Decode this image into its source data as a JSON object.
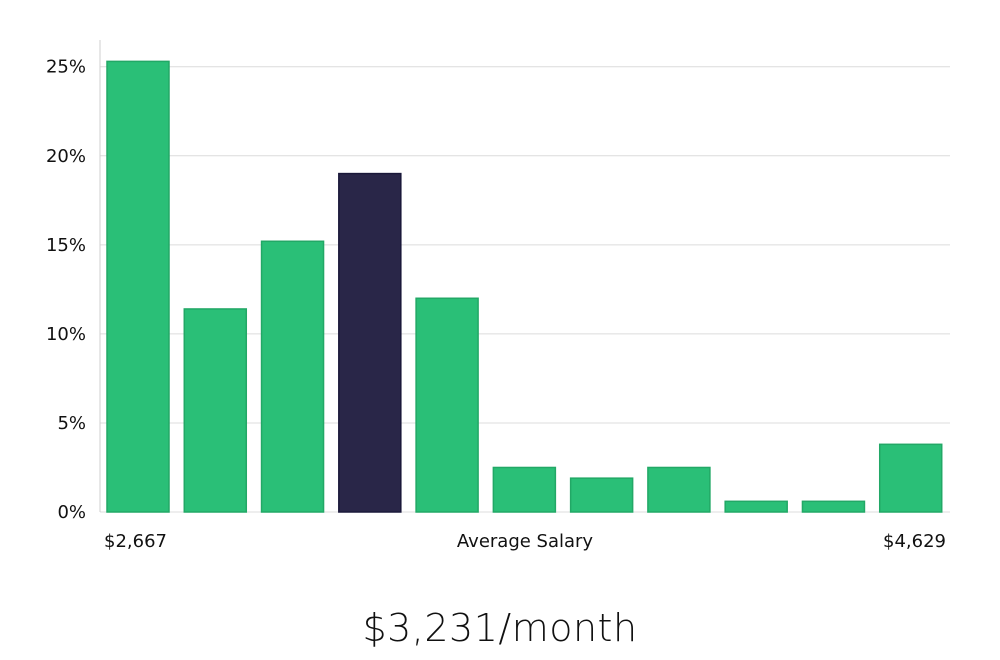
{
  "chart_data": {
    "type": "bar",
    "title": "",
    "xlabel": "Average Salary",
    "ylabel": "",
    "x_min_label": "$2,667",
    "x_max_label": "$4,629",
    "ylim": [
      0,
      26.5
    ],
    "yticks": [
      0,
      5,
      10,
      15,
      20,
      25
    ],
    "ytick_labels": [
      "0%",
      "5%",
      "10%",
      "15%",
      "20%",
      "25%"
    ],
    "values": [
      25.3,
      11.4,
      15.2,
      19.0,
      12.0,
      2.5,
      1.9,
      2.5,
      0.6,
      0.6,
      3.8
    ],
    "highlight_index": 3,
    "grid": true,
    "colors": {
      "bar": "#2abf77",
      "bar_stroke": "#22a866",
      "highlight": "#292648",
      "highlight_stroke": "#1a183a",
      "grid": "#dcdcdc",
      "axis": "#cfcfcf"
    }
  },
  "headline": "$3,231/month"
}
